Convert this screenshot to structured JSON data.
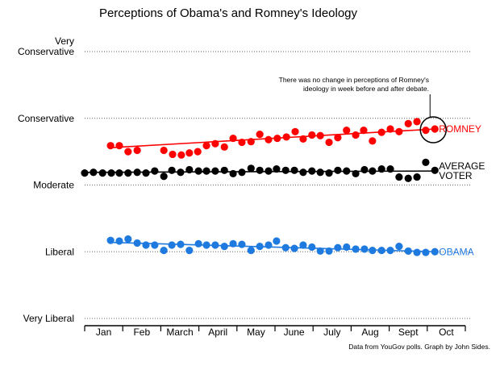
{
  "chart_data": {
    "type": "scatter",
    "title": "Perceptions of Obama's and Romney's Ideology",
    "xlabel": "",
    "ylabel": "",
    "ylim": [
      1,
      5
    ],
    "xlim_months": [
      0,
      10
    ],
    "grid": true,
    "y_ticks": [
      {
        "value": 5,
        "lines": [
          "Very",
          "Conservative"
        ]
      },
      {
        "value": 4,
        "lines": [
          "Conservative"
        ]
      },
      {
        "value": 3,
        "lines": [
          "Moderate"
        ]
      },
      {
        "value": 2,
        "lines": [
          "Liberal"
        ]
      },
      {
        "value": 1,
        "lines": [
          "Very Liberal"
        ]
      }
    ],
    "x_categories": [
      "Jan",
      "Feb",
      "March",
      "April",
      "May",
      "June",
      "July",
      "Aug",
      "Sept",
      "Oct"
    ],
    "series": [
      {
        "name": "ROMNEY",
        "color": "#ff0000",
        "x_months": [
          0.68,
          0.91,
          1.14,
          1.38,
          2.08,
          2.31,
          2.54,
          2.75,
          2.97,
          3.2,
          3.43,
          3.67,
          3.9,
          4.13,
          4.37,
          4.6,
          4.83,
          5.06,
          5.3,
          5.53,
          5.74,
          5.97,
          6.19,
          6.42,
          6.65,
          6.88,
          7.12,
          7.33,
          7.56,
          7.8,
          8.03,
          8.26,
          8.5,
          8.73,
          8.96,
          9.2
        ],
        "values": [
          3.59,
          3.59,
          3.5,
          3.52,
          3.52,
          3.46,
          3.45,
          3.48,
          3.5,
          3.59,
          3.62,
          3.57,
          3.7,
          3.64,
          3.65,
          3.76,
          3.68,
          3.7,
          3.72,
          3.8,
          3.69,
          3.75,
          3.74,
          3.64,
          3.71,
          3.82,
          3.75,
          3.82,
          3.66,
          3.79,
          3.84,
          3.8,
          3.92,
          3.95,
          3.82,
          3.84
        ],
        "trend": [
          3.56,
          3.84
        ]
      },
      {
        "name": "AVERAGE VOTER",
        "label_lines": [
          "AVERAGE",
          "VOTER"
        ],
        "color": "#000000",
        "x_months": [
          0.0,
          0.23,
          0.47,
          0.7,
          0.91,
          1.14,
          1.38,
          1.61,
          1.84,
          2.08,
          2.29,
          2.52,
          2.75,
          2.99,
          3.2,
          3.43,
          3.67,
          3.9,
          4.13,
          4.37,
          4.6,
          4.83,
          5.04,
          5.28,
          5.51,
          5.74,
          5.97,
          6.19,
          6.42,
          6.65,
          6.88,
          7.12,
          7.35,
          7.56,
          7.8,
          8.03,
          8.26,
          8.5,
          8.73,
          8.96,
          9.2
        ],
        "values": [
          3.18,
          3.19,
          3.18,
          3.18,
          3.18,
          3.18,
          3.19,
          3.18,
          3.21,
          3.13,
          3.22,
          3.19,
          3.23,
          3.21,
          3.21,
          3.21,
          3.22,
          3.17,
          3.19,
          3.25,
          3.22,
          3.21,
          3.24,
          3.22,
          3.22,
          3.19,
          3.21,
          3.19,
          3.18,
          3.22,
          3.21,
          3.17,
          3.23,
          3.21,
          3.24,
          3.24,
          3.12,
          3.1,
          3.12,
          3.34,
          3.22
        ],
        "trend": [
          3.19,
          3.21
        ]
      },
      {
        "name": "OBAMA",
        "color": "#1f7ae0",
        "x_months": [
          0.68,
          0.91,
          1.14,
          1.38,
          1.61,
          1.84,
          2.08,
          2.29,
          2.52,
          2.75,
          2.99,
          3.2,
          3.43,
          3.67,
          3.9,
          4.13,
          4.37,
          4.6,
          4.83,
          5.04,
          5.28,
          5.51,
          5.74,
          5.97,
          6.19,
          6.42,
          6.65,
          6.88,
          7.12,
          7.35,
          7.56,
          7.8,
          8.03,
          8.26,
          8.5,
          8.73,
          8.96,
          9.2
        ],
        "values": [
          2.17,
          2.16,
          2.19,
          2.13,
          2.1,
          2.1,
          2.02,
          2.1,
          2.11,
          2.02,
          2.12,
          2.1,
          2.1,
          2.08,
          2.12,
          2.11,
          2.02,
          2.08,
          2.1,
          2.16,
          2.06,
          2.05,
          2.1,
          2.07,
          2.01,
          2.01,
          2.06,
          2.07,
          2.04,
          2.04,
          2.02,
          2.02,
          2.02,
          2.08,
          2.01,
          1.99,
          1.99,
          2.0
        ],
        "trend": [
          2.14,
          2.0
        ]
      }
    ],
    "annotation": {
      "lines": [
        "There was no change in perceptions of Romney's",
        "ideology in week before and after debate."
      ],
      "target_series": "ROMNEY",
      "target_month": 9.2
    },
    "credit": "Data from YouGov polls. Graph by John Sides."
  }
}
